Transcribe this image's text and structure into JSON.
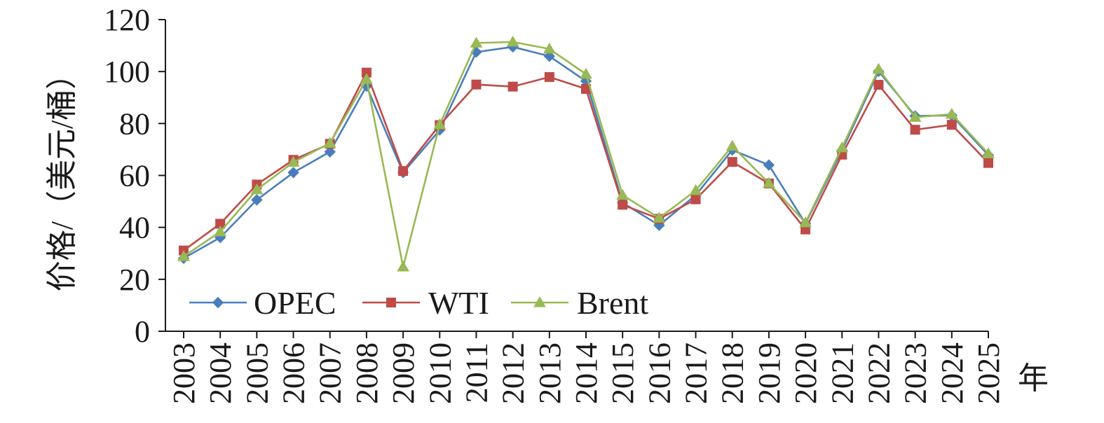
{
  "chart_data": {
    "type": "line",
    "title": "",
    "ylabel": "价格/（美元/桶）",
    "xlabel": "年",
    "ylim": [
      0,
      120
    ],
    "yticks": [
      0,
      20,
      40,
      60,
      80,
      100,
      120
    ],
    "grid": false,
    "legend_position": "bottom-left",
    "categories": [
      "2003",
      "2004",
      "2005",
      "2006",
      "2007",
      "2008",
      "2009",
      "2010",
      "2011",
      "2012",
      "2013",
      "2014",
      "2015",
      "2016",
      "2017",
      "2018",
      "2019",
      "2020",
      "2021",
      "2022",
      "2023",
      "2024",
      "2025"
    ],
    "series": [
      {
        "name": "OPEC",
        "color": "#4a7ebb",
        "marker": "diamond",
        "values": [
          28.1,
          36.1,
          50.6,
          61.1,
          69.1,
          94.4,
          61.1,
          77.5,
          107.5,
          109.5,
          105.9,
          96.3,
          49.5,
          40.8,
          52.4,
          69.8,
          64.0,
          41.5,
          69.7,
          100.1,
          82.9,
          83.1,
          67.8
        ]
      },
      {
        "name": "WTI",
        "color": "#be4b48",
        "marker": "square",
        "values": [
          31.1,
          41.4,
          56.5,
          66.0,
          72.2,
          99.6,
          61.7,
          79.4,
          95.0,
          94.2,
          97.9,
          93.3,
          48.7,
          43.3,
          50.8,
          65.2,
          56.9,
          39.2,
          68.0,
          94.9,
          77.6,
          79.5,
          64.8
        ]
      },
      {
        "name": "Brent",
        "color": "#98b954",
        "marker": "triangle",
        "values": [
          28.8,
          38.3,
          54.5,
          65.1,
          72.4,
          97.0,
          24.8,
          79.6,
          111.0,
          111.4,
          108.7,
          99.0,
          52.4,
          43.6,
          54.2,
          71.3,
          57.0,
          41.8,
          70.7,
          100.9,
          82.4,
          83.6,
          68.4
        ]
      }
    ]
  }
}
